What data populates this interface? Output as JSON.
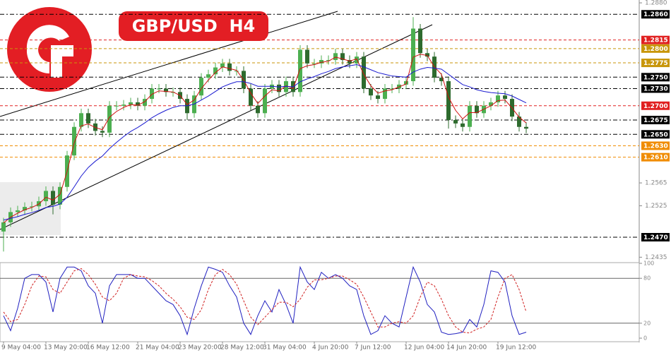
{
  "chart_data": {
    "type": "candlestick",
    "title": "GBP/USD  H4",
    "categories": [
      "9 May 04:00",
      null,
      null,
      null,
      null,
      null,
      "13 May 20:00",
      null,
      null,
      null,
      null,
      null,
      "16 May 12:00",
      null,
      null,
      null,
      null,
      null,
      null,
      "21 May 04:00",
      null,
      null,
      null,
      null,
      null,
      "23 May 20:00",
      null,
      null,
      null,
      null,
      null,
      "28 May 12:00",
      null,
      null,
      null,
      null,
      null,
      "31 May 04:00",
      null,
      null,
      null,
      null,
      null,
      null,
      "4 Jun 20:00",
      null,
      null,
      null,
      null,
      null,
      "7 Jun 12:00",
      null,
      null,
      null,
      null,
      null,
      null,
      "12 Jun 04:00",
      null,
      null,
      null,
      null,
      null,
      "14 Jun 20:00",
      null,
      null,
      null,
      null,
      null,
      null,
      "19 Jun 12:00",
      null,
      null,
      null,
      null
    ],
    "open": [
      1.248,
      1.2496,
      1.2514,
      1.2517,
      1.2523,
      1.2524,
      1.2533,
      1.2551,
      1.2527,
      1.2558,
      1.2613,
      1.2663,
      1.2687,
      1.2669,
      1.2656,
      1.2653,
      1.27,
      1.27,
      1.2702,
      1.2706,
      1.27,
      1.2712,
      1.273,
      1.273,
      1.2724,
      1.2724,
      1.2712,
      1.2687,
      1.2718,
      1.2749,
      1.2755,
      1.2767,
      1.2774,
      1.2761,
      1.2761,
      1.273,
      1.27,
      1.2687,
      1.273,
      1.2737,
      1.2724,
      1.2743,
      1.2724,
      1.2798,
      1.2774,
      1.2774,
      1.278,
      1.278,
      1.2792,
      1.278,
      1.2774,
      1.2786,
      1.273,
      1.2718,
      1.2712,
      1.273,
      1.273,
      1.2737,
      1.2743,
      1.2835,
      1.2792,
      1.2786,
      1.2749,
      1.2743,
      1.2675,
      1.2669,
      1.2663,
      1.27,
      1.2687,
      1.27,
      1.2706,
      1.2718,
      1.2712,
      1.2681,
      1.2663
    ],
    "high": [
      1.2504,
      1.2522,
      1.2525,
      1.2531,
      1.2532,
      1.2541,
      1.2559,
      1.2559,
      1.2566,
      1.2621,
      1.2671,
      1.2695,
      1.2695,
      1.2677,
      1.2664,
      1.2708,
      1.2708,
      1.271,
      1.2714,
      1.2714,
      1.272,
      1.2738,
      1.2738,
      1.2738,
      1.2732,
      1.2732,
      1.272,
      1.2726,
      1.2757,
      1.2763,
      1.2775,
      1.2782,
      1.2782,
      1.2769,
      1.2769,
      1.2738,
      1.2708,
      1.2738,
      1.2745,
      1.2745,
      1.2751,
      1.2751,
      1.2806,
      1.2806,
      1.2782,
      1.2788,
      1.2788,
      1.28,
      1.28,
      1.2788,
      1.2794,
      1.2794,
      1.2738,
      1.2726,
      1.2738,
      1.2738,
      1.2745,
      1.2751,
      1.2855,
      1.2843,
      1.28,
      1.2794,
      1.2757,
      1.2751,
      1.2683,
      1.2677,
      1.2708,
      1.2708,
      1.2708,
      1.2714,
      1.2726,
      1.2726,
      1.272,
      1.2689,
      1.2671
    ],
    "low": [
      1.2445,
      1.2488,
      1.2506,
      1.2509,
      1.2515,
      1.2516,
      1.2525,
      1.251,
      1.2519,
      1.255,
      1.2605,
      1.2655,
      1.2661,
      1.2648,
      1.2645,
      1.2645,
      1.2692,
      1.2692,
      1.2694,
      1.2692,
      1.2692,
      1.2704,
      1.2722,
      1.2716,
      1.2716,
      1.2704,
      1.2675,
      1.2679,
      1.271,
      1.2741,
      1.2747,
      1.2759,
      1.2753,
      1.2753,
      1.2722,
      1.2692,
      1.2679,
      1.2679,
      1.2722,
      1.2716,
      1.2716,
      1.2716,
      1.2716,
      1.2766,
      1.2766,
      1.2766,
      1.2772,
      1.2772,
      1.2772,
      1.2766,
      1.2766,
      1.2722,
      1.271,
      1.2704,
      1.2704,
      1.2722,
      1.2722,
      1.2729,
      1.2735,
      1.2784,
      1.2778,
      1.2741,
      1.2735,
      1.266,
      1.2661,
      1.2655,
      1.2655,
      1.2679,
      1.2679,
      1.2692,
      1.2698,
      1.2704,
      1.2673,
      1.2655,
      1.2652
    ],
    "close": [
      1.2496,
      1.2514,
      1.2517,
      1.2523,
      1.2524,
      1.2533,
      1.2551,
      1.2527,
      1.2558,
      1.2613,
      1.2663,
      1.2687,
      1.2669,
      1.2656,
      1.2653,
      1.27,
      1.27,
      1.2702,
      1.2706,
      1.27,
      1.2712,
      1.273,
      1.273,
      1.2724,
      1.2724,
      1.2712,
      1.2687,
      1.2718,
      1.2749,
      1.2755,
      1.2767,
      1.2774,
      1.2761,
      1.2761,
      1.273,
      1.27,
      1.2687,
      1.273,
      1.2737,
      1.2724,
      1.2743,
      1.2724,
      1.2798,
      1.2774,
      1.2774,
      1.278,
      1.278,
      1.2792,
      1.278,
      1.2774,
      1.2786,
      1.273,
      1.2718,
      1.2712,
      1.273,
      1.273,
      1.2737,
      1.2743,
      1.2835,
      1.2792,
      1.2786,
      1.2749,
      1.2743,
      1.2675,
      1.2669,
      1.2663,
      1.27,
      1.2687,
      1.27,
      1.2706,
      1.2718,
      1.2712,
      1.2681,
      1.2663,
      1.266
    ],
    "up_color": "#4caf50",
    "down_color": "#2e6b2e",
    "series": [
      {
        "color": "#d01010",
        "values": [
          1.2495,
          1.2505,
          1.2512,
          1.2518,
          1.2522,
          1.2528,
          1.254,
          1.2535,
          1.2545,
          1.2585,
          1.2635,
          1.2665,
          1.2668,
          1.2662,
          1.2658,
          1.268,
          1.269,
          1.2697,
          1.2702,
          1.2701,
          1.2707,
          1.272,
          1.2726,
          1.2725,
          1.2724,
          1.2718,
          1.2702,
          1.271,
          1.273,
          1.2745,
          1.2758,
          1.2768,
          1.2765,
          1.2762,
          1.2745,
          1.2722,
          1.2704,
          1.2717,
          1.2728,
          1.2726,
          1.2735,
          1.273,
          1.2765,
          1.277,
          1.2772,
          1.2776,
          1.2778,
          1.2785,
          1.2782,
          1.2778,
          1.2782,
          1.2755,
          1.2735,
          1.2722,
          1.2726,
          1.2728,
          1.2733,
          1.2738,
          1.2785,
          1.279,
          1.2788,
          1.2768,
          1.2755,
          1.2715,
          1.2692,
          1.2677,
          1.2688,
          1.2688,
          1.2694,
          1.27,
          1.2709,
          1.271,
          1.2696,
          1.268,
          1.267
        ]
      },
      {
        "color": "#1a1ad0",
        "values": [
          1.25,
          1.2503,
          1.2506,
          1.251,
          1.2513,
          1.2517,
          1.2522,
          1.2524,
          1.2528,
          1.254,
          1.2558,
          1.2577,
          1.2592,
          1.2603,
          1.2612,
          1.2625,
          1.2636,
          1.2646,
          1.2655,
          1.2662,
          1.267,
          1.2679,
          1.2686,
          1.2692,
          1.2697,
          1.27,
          1.27,
          1.2703,
          1.271,
          1.2717,
          1.2725,
          1.2733,
          1.2738,
          1.2742,
          1.2742,
          1.2739,
          1.2734,
          1.2734,
          1.2734,
          1.2733,
          1.2734,
          1.2733,
          1.2742,
          1.2747,
          1.2751,
          1.2756,
          1.276,
          1.2765,
          1.2768,
          1.277,
          1.2772,
          1.2768,
          1.2763,
          1.2758,
          1.2755,
          1.2752,
          1.2751,
          1.275,
          1.2759,
          1.2764,
          1.2767,
          1.2766,
          1.2764,
          1.2755,
          1.2746,
          1.2737,
          1.2733,
          1.2728,
          1.2725,
          1.2723,
          1.2722,
          1.2721,
          1.2717,
          1.2711,
          1.2705
        ]
      }
    ],
    "ylim": [
      1.2428,
      1.2885
    ],
    "yticks": [
      {
        "value": 1.288,
        "label": "1.2880"
      },
      {
        "value": 1.2565,
        "label": "1.2565"
      },
      {
        "value": 1.2525,
        "label": "1.2525"
      },
      {
        "value": 1.2435,
        "label": "1.2435"
      }
    ],
    "levels": [
      {
        "value": 1.286,
        "label": "1.2860",
        "color": "#000000"
      },
      {
        "value": 1.2815,
        "label": "1.2815",
        "color": "#e02020"
      },
      {
        "value": 1.28,
        "label": "1.2800",
        "color": "#c8960a"
      },
      {
        "value": 1.2775,
        "label": "1.2775",
        "color": "#c8960a"
      },
      {
        "value": 1.275,
        "label": "1.2750",
        "color": "#000000"
      },
      {
        "value": 1.273,
        "label": "1.2730",
        "color": "#000000"
      },
      {
        "value": 1.27,
        "label": "1.2700",
        "color": "#e02020"
      },
      {
        "value": 1.2675,
        "label": "1.2675",
        "color": "#000000"
      },
      {
        "value": 1.265,
        "label": "1.2650",
        "color": "#000000"
      },
      {
        "value": 1.263,
        "label": "1.2630",
        "color": "#f08c00"
      },
      {
        "value": 1.261,
        "label": "1.2610",
        "color": "#f08c00"
      },
      {
        "value": 1.247,
        "label": "1.2470",
        "color": "#000000"
      }
    ],
    "oscillator": {
      "ylim": [
        0,
        100
      ],
      "yticks": [
        100,
        80,
        20,
        0
      ],
      "levels": [
        80,
        20
      ],
      "series": [
        {
          "color": "#2020c0",
          "style": "solid",
          "values": [
            30,
            10,
            40,
            80,
            85,
            85,
            75,
            35,
            80,
            95,
            95,
            90,
            70,
            60,
            20,
            70,
            85,
            85,
            85,
            80,
            80,
            70,
            60,
            50,
            45,
            30,
            5,
            40,
            70,
            95,
            92,
            88,
            70,
            55,
            20,
            5,
            30,
            50,
            35,
            65,
            45,
            20,
            95,
            75,
            65,
            88,
            80,
            85,
            80,
            70,
            65,
            30,
            5,
            10,
            30,
            20,
            15,
            55,
            95,
            75,
            45,
            35,
            8,
            5,
            6,
            8,
            25,
            15,
            45,
            90,
            88,
            75,
            30,
            5,
            8
          ]
        },
        {
          "color": "#d02020",
          "style": "dashed",
          "values": [
            35,
            22,
            25,
            45,
            70,
            83,
            82,
            65,
            60,
            75,
            90,
            93,
            85,
            72,
            55,
            50,
            60,
            80,
            85,
            83,
            82,
            77,
            70,
            60,
            52,
            42,
            28,
            25,
            38,
            65,
            85,
            92,
            85,
            72,
            50,
            28,
            18,
            28,
            38,
            48,
            48,
            42,
            52,
            68,
            78,
            78,
            80,
            83,
            83,
            78,
            72,
            55,
            35,
            15,
            15,
            20,
            22,
            20,
            30,
            55,
            75,
            70,
            52,
            30,
            15,
            8,
            7,
            12,
            15,
            25,
            55,
            80,
            85,
            65,
            35
          ]
        }
      ]
    }
  }
}
